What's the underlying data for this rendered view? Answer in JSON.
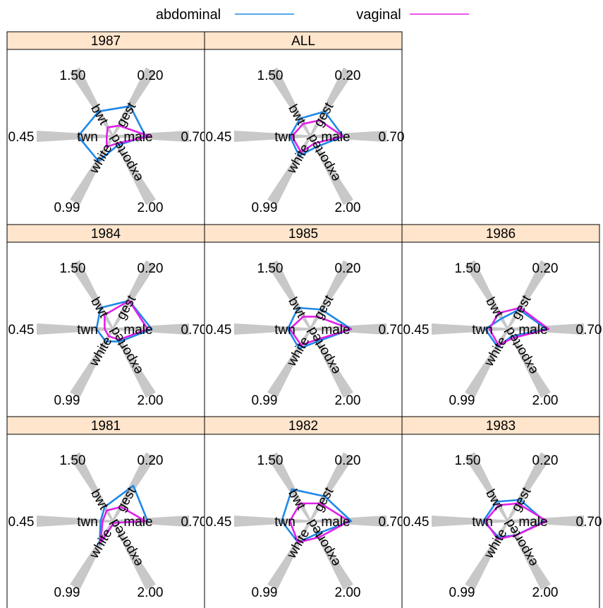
{
  "legend": [
    {
      "label": "abdominal",
      "color": "#1f88e8"
    },
    {
      "label": "vaginal",
      "color": "#e020e8"
    }
  ],
  "chart_data": {
    "type": "radar",
    "variables": [
      "male",
      "gest",
      "bwt",
      "twn",
      "white",
      "exported"
    ],
    "axis_extreme_labels": {
      "male": "0.70",
      "gest": "0.20",
      "bwt": "1.50",
      "twn": "0.45",
      "white": "0.99",
      "exported": "2.00"
    },
    "panels": [
      {
        "title": "1987",
        "series": [
          {
            "name": "abdominal",
            "values": [
              0.8,
              0.85,
              0.7,
              0.85,
              0.7,
              0.25
            ]
          },
          {
            "name": "vaginal",
            "values": [
              0.9,
              0.3,
              0.25,
              0.15,
              0.3,
              0.2
            ]
          }
        ]
      },
      {
        "title": "ALL",
        "series": [
          {
            "name": "abdominal",
            "values": [
              0.8,
              0.7,
              0.5,
              0.5,
              0.55,
              0.3
            ]
          },
          {
            "name": "vaginal",
            "values": [
              0.8,
              0.45,
              0.35,
              0.45,
              0.45,
              0.2
            ]
          }
        ]
      },
      {
        "title": "1984",
        "series": [
          {
            "name": "abdominal",
            "values": [
              0.95,
              0.8,
              0.6,
              0.4,
              0.35,
              0.35
            ]
          },
          {
            "name": "vaginal",
            "values": [
              0.85,
              0.8,
              0.4,
              0.2,
              0.2,
              0.3
            ]
          }
        ]
      },
      {
        "title": "1985",
        "series": [
          {
            "name": "abdominal",
            "values": [
              1.0,
              0.55,
              0.6,
              0.55,
              0.55,
              0.35
            ]
          },
          {
            "name": "vaginal",
            "values": [
              1.0,
              0.35,
              0.35,
              0.5,
              0.45,
              0.3
            ]
          }
        ]
      },
      {
        "title": "1986",
        "series": [
          {
            "name": "abdominal",
            "values": [
              0.95,
              0.55,
              0.3,
              0.55,
              0.5,
              0.2
            ]
          },
          {
            "name": "vaginal",
            "values": [
              1.0,
              0.6,
              0.45,
              0.45,
              0.45,
              0.25
            ]
          }
        ]
      },
      {
        "title": "1981",
        "series": [
          {
            "name": "abdominal",
            "values": [
              0.85,
              1.0,
              0.4,
              0.3,
              0.65,
              0.05
            ]
          },
          {
            "name": "vaginal",
            "values": [
              0.8,
              0.4,
              0.3,
              0.25,
              0.6,
              0.05
            ]
          }
        ]
      },
      {
        "title": "1982",
        "series": [
          {
            "name": "abdominal",
            "values": [
              1.0,
              0.7,
              0.9,
              0.7,
              0.6,
              0.35
            ]
          },
          {
            "name": "vaginal",
            "values": [
              0.95,
              0.5,
              0.5,
              0.5,
              0.6,
              0.45
            ]
          }
        ]
      },
      {
        "title": "1983",
        "series": [
          {
            "name": "abdominal",
            "values": [
              0.9,
              0.6,
              0.55,
              0.6,
              0.45,
              0.4
            ]
          },
          {
            "name": "vaginal",
            "values": [
              0.95,
              0.5,
              0.45,
              0.55,
              0.5,
              0.4
            ]
          }
        ]
      }
    ]
  }
}
